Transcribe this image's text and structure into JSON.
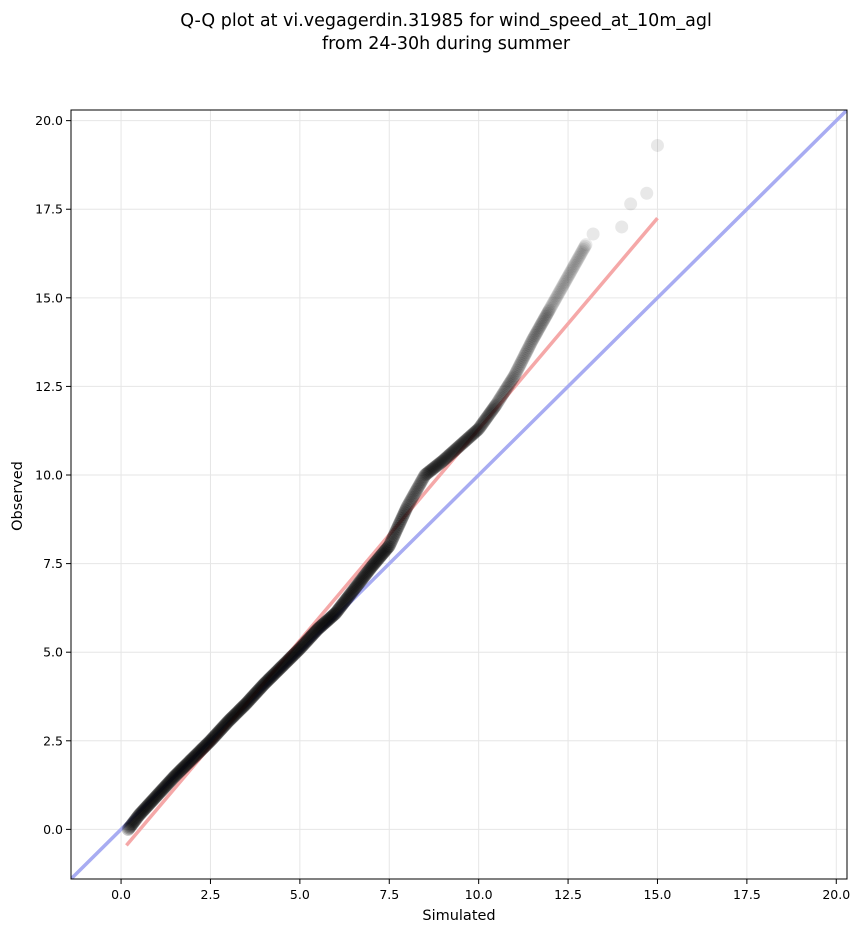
{
  "chart_data": {
    "type": "scatter",
    "title": [
      "Q-Q plot at vi.vegagerdin.31985 for wind_speed_at_10m_agl",
      "from 24-30h during summer"
    ],
    "xlabel": "Simulated",
    "ylabel": "Observed",
    "xlim": [
      -1.4,
      20.3
    ],
    "ylim": [
      -1.4,
      20.3
    ],
    "x_ticks": [
      0.0,
      2.5,
      5.0,
      7.5,
      10.0,
      12.5,
      15.0,
      17.5,
      20.0
    ],
    "y_ticks": [
      0.0,
      2.5,
      5.0,
      7.5,
      10.0,
      12.5,
      15.0,
      17.5,
      20.0
    ],
    "x_tick_labels": [
      "0.0",
      "2.5",
      "5.0",
      "7.5",
      "10.0",
      "12.5",
      "15.0",
      "17.5",
      "20.0"
    ],
    "y_tick_labels": [
      "0.0",
      "2.5",
      "5.0",
      "7.5",
      "10.0",
      "12.5",
      "15.0",
      "17.5",
      "20.0"
    ],
    "grid": true,
    "colors": {
      "points": "#000000",
      "identity_line": "#a8acf2",
      "fit_line": "#f5a8a8",
      "grid": "#e6e6e6"
    },
    "reference_lines": [
      {
        "role": "identity",
        "x": [
          -1.4,
          20.3
        ],
        "y": [
          -1.4,
          20.3
        ]
      },
      {
        "role": "fit",
        "x": [
          0.15,
          15.0
        ],
        "y": [
          -0.45,
          17.25
        ]
      }
    ],
    "quantile_curve": {
      "x": [
        0.2,
        0.5,
        1.0,
        1.5,
        2.0,
        2.5,
        3.0,
        3.5,
        4.0,
        4.5,
        5.0,
        5.5,
        6.0,
        6.5,
        7.0,
        7.5,
        8.0,
        8.5,
        9.0,
        9.5,
        10.0,
        10.5,
        11.0,
        11.5,
        12.0,
        12.5,
        13.0
      ],
      "y": [
        0.0,
        0.4,
        0.95,
        1.5,
        2.0,
        2.5,
        3.05,
        3.55,
        4.1,
        4.6,
        5.1,
        5.65,
        6.1,
        6.75,
        7.4,
        8.0,
        9.1,
        10.0,
        10.4,
        10.85,
        11.3,
        12.0,
        12.8,
        13.8,
        14.7,
        15.6,
        16.5
      ]
    },
    "tail_points": [
      {
        "x": 13.2,
        "y": 16.8
      },
      {
        "x": 14.0,
        "y": 17.0
      },
      {
        "x": 14.25,
        "y": 17.65
      },
      {
        "x": 14.7,
        "y": 17.95
      },
      {
        "x": 15.0,
        "y": 19.3
      }
    ]
  }
}
